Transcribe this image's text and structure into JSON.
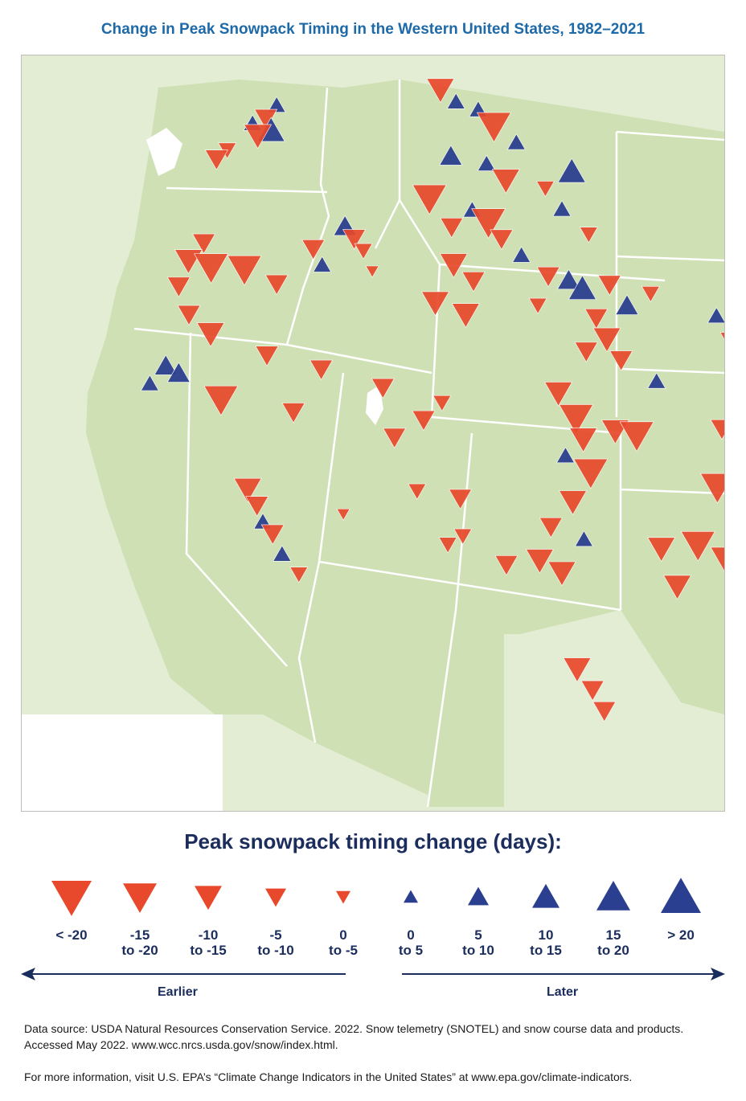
{
  "title": "Change in Peak Snowpack Timing in the Western United States, 1982–2021",
  "colors": {
    "earlier": "#e8482b",
    "later": "#2a3f8f",
    "land_focus": "#cfe0b4",
    "land_other": "#e3edd4",
    "water": "#ffffff",
    "border": "#ffffff"
  },
  "legend": {
    "title": "Peak snowpack timing change (days):",
    "items": [
      {
        "label_line1": "< -20",
        "label_line2": "",
        "direction": "down",
        "size": 5
      },
      {
        "label_line1": "-15",
        "label_line2": "to -20",
        "direction": "down",
        "size": 4
      },
      {
        "label_line1": "-10",
        "label_line2": "to -15",
        "direction": "down",
        "size": 3
      },
      {
        "label_line1": "-5",
        "label_line2": "to -10",
        "direction": "down",
        "size": 2
      },
      {
        "label_line1": "0",
        "label_line2": "to -5",
        "direction": "down",
        "size": 1
      },
      {
        "label_line1": "0",
        "label_line2": "to 5",
        "direction": "up",
        "size": 1
      },
      {
        "label_line1": "5",
        "label_line2": "to 10",
        "direction": "up",
        "size": 2
      },
      {
        "label_line1": "10",
        "label_line2": "to 15",
        "direction": "up",
        "size": 3
      },
      {
        "label_line1": "15",
        "label_line2": "to 20",
        "direction": "up",
        "size": 4
      },
      {
        "label_line1": "> 20",
        "label_line2": "",
        "direction": "up",
        "size": 5
      }
    ],
    "earlier_label": "Earlier",
    "later_label": "Later"
  },
  "source_note": "Data source: USDA Natural Resources Conservation Service. 2022. Snow telemetry (SNOTEL) and snow course data and products. Accessed May 2022. www.wcc.nrcs.usda.gov/snow/index.html.",
  "more_info_note": "For more information, visit U.S. EPA’s “Climate Change Indicators in the United States” at www.epa.gov/climate-indicators.",
  "chart_data": {
    "type": "map",
    "region": "Western United States",
    "symbol_encoding": "down triangle = earlier (red), up triangle = later (blue); size class 1-5 by magnitude",
    "stations": [
      {
        "lon": -120.9,
        "lat": 48.6,
        "dir": "up",
        "size": 2
      },
      {
        "lon": -121.2,
        "lat": 48.3,
        "dir": "down",
        "size": 3
      },
      {
        "lon": -121.0,
        "lat": 48.0,
        "dir": "up",
        "size": 4
      },
      {
        "lon": -121.6,
        "lat": 48.2,
        "dir": "up",
        "size": 2
      },
      {
        "lon": -121.4,
        "lat": 47.9,
        "dir": "down",
        "size": 4
      },
      {
        "lon": -122.3,
        "lat": 47.6,
        "dir": "down",
        "size": 2
      },
      {
        "lon": -122.6,
        "lat": 47.4,
        "dir": "down",
        "size": 3
      },
      {
        "lon": -122.7,
        "lat": 45.4,
        "dir": "down",
        "size": 3
      },
      {
        "lon": -123.1,
        "lat": 45.0,
        "dir": "down",
        "size": 4
      },
      {
        "lon": -122.4,
        "lat": 44.8,
        "dir": "down",
        "size": 5
      },
      {
        "lon": -123.3,
        "lat": 44.4,
        "dir": "down",
        "size": 3
      },
      {
        "lon": -122.9,
        "lat": 43.7,
        "dir": "down",
        "size": 3
      },
      {
        "lon": -122.2,
        "lat": 43.2,
        "dir": "down",
        "size": 4
      },
      {
        "lon": -123.4,
        "lat": 42.5,
        "dir": "up",
        "size": 3
      },
      {
        "lon": -123.0,
        "lat": 42.3,
        "dir": "up",
        "size": 3
      },
      {
        "lon": -123.8,
        "lat": 42.1,
        "dir": "up",
        "size": 2
      },
      {
        "lon": -121.4,
        "lat": 44.7,
        "dir": "down",
        "size": 5
      },
      {
        "lon": -120.4,
        "lat": 44.3,
        "dir": "down",
        "size": 3
      },
      {
        "lon": -119.4,
        "lat": 45.1,
        "dir": "down",
        "size": 3
      },
      {
        "lon": -118.5,
        "lat": 45.6,
        "dir": "up",
        "size": 3
      },
      {
        "lon": -118.2,
        "lat": 45.3,
        "dir": "down",
        "size": 3
      },
      {
        "lon": -119.1,
        "lat": 44.7,
        "dir": "up",
        "size": 2
      },
      {
        "lon": -117.9,
        "lat": 45.0,
        "dir": "down",
        "size": 2
      },
      {
        "lon": -117.6,
        "lat": 44.5,
        "dir": "down",
        "size": 1
      },
      {
        "lon": -120.5,
        "lat": 42.6,
        "dir": "down",
        "size": 3
      },
      {
        "lon": -118.9,
        "lat": 42.2,
        "dir": "down",
        "size": 3
      },
      {
        "lon": -121.7,
        "lat": 41.6,
        "dir": "down",
        "size": 5
      },
      {
        "lon": -119.6,
        "lat": 41.2,
        "dir": "down",
        "size": 3
      },
      {
        "lon": -120.7,
        "lat": 39.4,
        "dir": "down",
        "size": 4
      },
      {
        "lon": -120.4,
        "lat": 39.0,
        "dir": "down",
        "size": 3
      },
      {
        "lon": -120.2,
        "lat": 38.6,
        "dir": "up",
        "size": 2
      },
      {
        "lon": -119.9,
        "lat": 38.3,
        "dir": "down",
        "size": 3
      },
      {
        "lon": -119.6,
        "lat": 37.8,
        "dir": "up",
        "size": 2
      },
      {
        "lon": -119.1,
        "lat": 37.3,
        "dir": "down",
        "size": 2
      },
      {
        "lon": -115.8,
        "lat": 48.8,
        "dir": "down",
        "size": 4
      },
      {
        "lon": -115.3,
        "lat": 48.5,
        "dir": "up",
        "size": 2
      },
      {
        "lon": -114.6,
        "lat": 48.3,
        "dir": "up",
        "size": 2
      },
      {
        "lon": -114.1,
        "lat": 47.9,
        "dir": "down",
        "size": 5
      },
      {
        "lon": -113.4,
        "lat": 47.5,
        "dir": "up",
        "size": 2
      },
      {
        "lon": -115.4,
        "lat": 47.2,
        "dir": "up",
        "size": 3
      },
      {
        "lon": -114.3,
        "lat": 47.0,
        "dir": "up",
        "size": 2
      },
      {
        "lon": -113.7,
        "lat": 46.6,
        "dir": "down",
        "size": 4
      },
      {
        "lon": -112.5,
        "lat": 46.4,
        "dir": "down",
        "size": 2
      },
      {
        "lon": -111.7,
        "lat": 46.8,
        "dir": "up",
        "size": 4
      },
      {
        "lon": -112.0,
        "lat": 45.9,
        "dir": "up",
        "size": 2
      },
      {
        "lon": -116.0,
        "lat": 46.2,
        "dir": "down",
        "size": 5
      },
      {
        "lon": -115.3,
        "lat": 45.5,
        "dir": "down",
        "size": 3
      },
      {
        "lon": -114.7,
        "lat": 45.9,
        "dir": "up",
        "size": 2
      },
      {
        "lon": -114.2,
        "lat": 45.6,
        "dir": "down",
        "size": 5
      },
      {
        "lon": -113.8,
        "lat": 45.2,
        "dir": "down",
        "size": 3
      },
      {
        "lon": -115.2,
        "lat": 44.6,
        "dir": "down",
        "size": 4
      },
      {
        "lon": -114.6,
        "lat": 44.2,
        "dir": "down",
        "size": 3
      },
      {
        "lon": -115.7,
        "lat": 43.7,
        "dir": "down",
        "size": 4
      },
      {
        "lon": -114.8,
        "lat": 43.4,
        "dir": "down",
        "size": 4
      },
      {
        "lon": -113.2,
        "lat": 44.8,
        "dir": "up",
        "size": 2
      },
      {
        "lon": -112.4,
        "lat": 44.3,
        "dir": "down",
        "size": 3
      },
      {
        "lon": -111.2,
        "lat": 45.3,
        "dir": "down",
        "size": 2
      },
      {
        "lon": -112.7,
        "lat": 43.6,
        "dir": "down",
        "size": 2
      },
      {
        "lon": -111.8,
        "lat": 44.2,
        "dir": "up",
        "size": 3
      },
      {
        "lon": -111.4,
        "lat": 44.0,
        "dir": "up",
        "size": 4
      },
      {
        "lon": -110.6,
        "lat": 44.1,
        "dir": "down",
        "size": 3
      },
      {
        "lon": -110.1,
        "lat": 43.6,
        "dir": "up",
        "size": 3
      },
      {
        "lon": -111.0,
        "lat": 43.3,
        "dir": "down",
        "size": 3
      },
      {
        "lon": -110.7,
        "lat": 42.8,
        "dir": "down",
        "size": 4
      },
      {
        "lon": -111.3,
        "lat": 42.5,
        "dir": "down",
        "size": 3
      },
      {
        "lon": -110.3,
        "lat": 42.3,
        "dir": "down",
        "size": 3
      },
      {
        "lon": -109.4,
        "lat": 43.9,
        "dir": "down",
        "size": 2
      },
      {
        "lon": -109.3,
        "lat": 41.8,
        "dir": "up",
        "size": 2
      },
      {
        "lon": -107.5,
        "lat": 43.4,
        "dir": "up",
        "size": 2
      },
      {
        "lon": -107.1,
        "lat": 42.8,
        "dir": "down",
        "size": 3
      },
      {
        "lon": -106.9,
        "lat": 42.0,
        "dir": "down",
        "size": 3
      },
      {
        "lon": -105.8,
        "lat": 44.2,
        "dir": "up",
        "size": 4
      },
      {
        "lon": -112.1,
        "lat": 41.5,
        "dir": "down",
        "size": 4
      },
      {
        "lon": -111.6,
        "lat": 40.9,
        "dir": "down",
        "size": 5
      },
      {
        "lon": -111.4,
        "lat": 40.4,
        "dir": "down",
        "size": 4
      },
      {
        "lon": -111.9,
        "lat": 40.0,
        "dir": "up",
        "size": 2
      },
      {
        "lon": -111.2,
        "lat": 39.6,
        "dir": "down",
        "size": 5
      },
      {
        "lon": -110.5,
        "lat": 40.6,
        "dir": "down",
        "size": 4
      },
      {
        "lon": -109.9,
        "lat": 40.5,
        "dir": "down",
        "size": 5
      },
      {
        "lon": -111.7,
        "lat": 38.9,
        "dir": "down",
        "size": 4
      },
      {
        "lon": -112.3,
        "lat": 38.3,
        "dir": "down",
        "size": 3
      },
      {
        "lon": -111.4,
        "lat": 38.0,
        "dir": "up",
        "size": 2
      },
      {
        "lon": -112.6,
        "lat": 37.5,
        "dir": "down",
        "size": 4
      },
      {
        "lon": -113.5,
        "lat": 37.4,
        "dir": "down",
        "size": 3
      },
      {
        "lon": -112.0,
        "lat": 37.2,
        "dir": "down",
        "size": 4
      },
      {
        "lon": -107.5,
        "lat": 40.7,
        "dir": "down",
        "size": 3
      },
      {
        "lon": -107.0,
        "lat": 40.3,
        "dir": "up",
        "size": 2
      },
      {
        "lon": -106.6,
        "lat": 40.0,
        "dir": "down",
        "size": 4
      },
      {
        "lon": -106.1,
        "lat": 39.6,
        "dir": "up",
        "size": 2
      },
      {
        "lon": -105.8,
        "lat": 39.9,
        "dir": "down",
        "size": 3
      },
      {
        "lon": -107.7,
        "lat": 39.3,
        "dir": "down",
        "size": 5
      },
      {
        "lon": -107.0,
        "lat": 38.9,
        "dir": "down",
        "size": 4
      },
      {
        "lon": -106.3,
        "lat": 38.7,
        "dir": "down",
        "size": 3
      },
      {
        "lon": -106.0,
        "lat": 38.2,
        "dir": "up",
        "size": 3
      },
      {
        "lon": -108.3,
        "lat": 37.9,
        "dir": "down",
        "size": 5
      },
      {
        "lon": -107.6,
        "lat": 37.6,
        "dir": "down",
        "size": 4
      },
      {
        "lon": -106.7,
        "lat": 37.3,
        "dir": "up",
        "size": 2
      },
      {
        "lon": -106.8,
        "lat": 37.2,
        "dir": "down",
        "size": 5
      },
      {
        "lon": -105.5,
        "lat": 37.4,
        "dir": "down",
        "size": 4
      },
      {
        "lon": -106.0,
        "lat": 36.8,
        "dir": "down",
        "size": 5
      },
      {
        "lon": -105.6,
        "lat": 36.5,
        "dir": "down",
        "size": 4
      },
      {
        "lon": -106.4,
        "lat": 36.2,
        "dir": "down",
        "size": 5
      },
      {
        "lon": -105.2,
        "lat": 36.6,
        "dir": "down",
        "size": 5
      },
      {
        "lon": -105.9,
        "lat": 35.8,
        "dir": "down",
        "size": 5
      },
      {
        "lon": -105.5,
        "lat": 35.7,
        "dir": "down",
        "size": 4
      },
      {
        "lon": -108.9,
        "lat": 36.9,
        "dir": "down",
        "size": 4
      },
      {
        "lon": -109.3,
        "lat": 37.8,
        "dir": "down",
        "size": 4
      },
      {
        "lon": -111.6,
        "lat": 34.9,
        "dir": "down",
        "size": 4
      },
      {
        "lon": -111.2,
        "lat": 34.4,
        "dir": "down",
        "size": 3
      },
      {
        "lon": -110.9,
        "lat": 33.9,
        "dir": "down",
        "size": 3
      },
      {
        "lon": -116.7,
        "lat": 40.5,
        "dir": "down",
        "size": 3
      },
      {
        "lon": -115.9,
        "lat": 40.9,
        "dir": "down",
        "size": 3
      },
      {
        "lon": -115.4,
        "lat": 41.3,
        "dir": "down",
        "size": 2
      },
      {
        "lon": -117.1,
        "lat": 41.7,
        "dir": "down",
        "size": 3
      },
      {
        "lon": -116.0,
        "lat": 39.2,
        "dir": "down",
        "size": 2
      },
      {
        "lon": -114.8,
        "lat": 39.0,
        "dir": "down",
        "size": 3
      },
      {
        "lon": -118.0,
        "lat": 38.7,
        "dir": "down",
        "size": 1
      },
      {
        "lon": -115.1,
        "lat": 37.9,
        "dir": "down",
        "size": 2
      },
      {
        "lon": -114.7,
        "lat": 38.1,
        "dir": "down",
        "size": 2
      }
    ]
  }
}
